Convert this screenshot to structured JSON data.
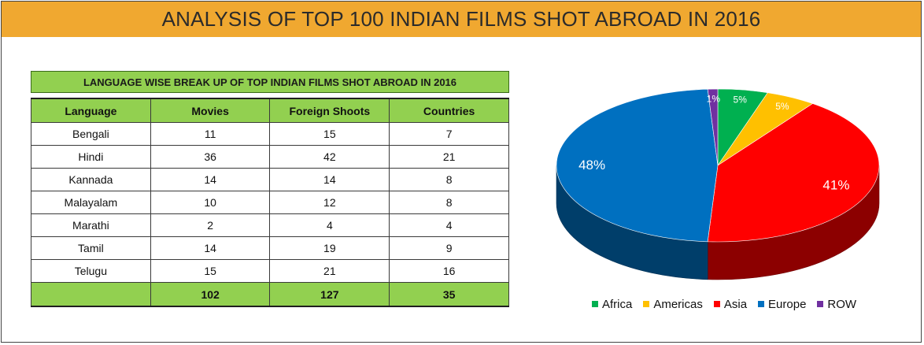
{
  "header": {
    "title": "ANALYSIS OF TOP 100 INDIAN FILMS SHOT ABROAD IN 2016"
  },
  "table": {
    "title": "LANGUAGE WISE BREAK UP OF TOP INDIAN FILMS SHOT ABROAD IN 2016",
    "columns": [
      "Language",
      "Movies",
      "Foreign Shoots",
      "Countries"
    ],
    "rows": [
      [
        "Bengali",
        "11",
        "15",
        "7"
      ],
      [
        "Hindi",
        "36",
        "42",
        "21"
      ],
      [
        "Kannada",
        "14",
        "14",
        "8"
      ],
      [
        "Malayalam",
        "10",
        "12",
        "8"
      ],
      [
        "Marathi",
        "2",
        "4",
        "4"
      ],
      [
        "Tamil",
        "14",
        "19",
        "9"
      ],
      [
        "Telugu",
        "15",
        "21",
        "16"
      ]
    ],
    "totals": [
      "",
      "102",
      "127",
      "35"
    ]
  },
  "chart_data": {
    "type": "pie",
    "title": "",
    "legend_position": "bottom",
    "slices": [
      {
        "name": "Africa",
        "value": 5,
        "label": "5%",
        "color": "#00b050"
      },
      {
        "name": "Americas",
        "value": 5,
        "label": "5%",
        "color": "#ffc000"
      },
      {
        "name": "Asia",
        "value": 41,
        "label": "41%",
        "color": "#ff0000"
      },
      {
        "name": "Europe",
        "value": 48,
        "label": "48%",
        "color": "#0070c0"
      },
      {
        "name": "ROW",
        "value": 1,
        "label": "1%",
        "color": "#7030a0"
      }
    ]
  }
}
